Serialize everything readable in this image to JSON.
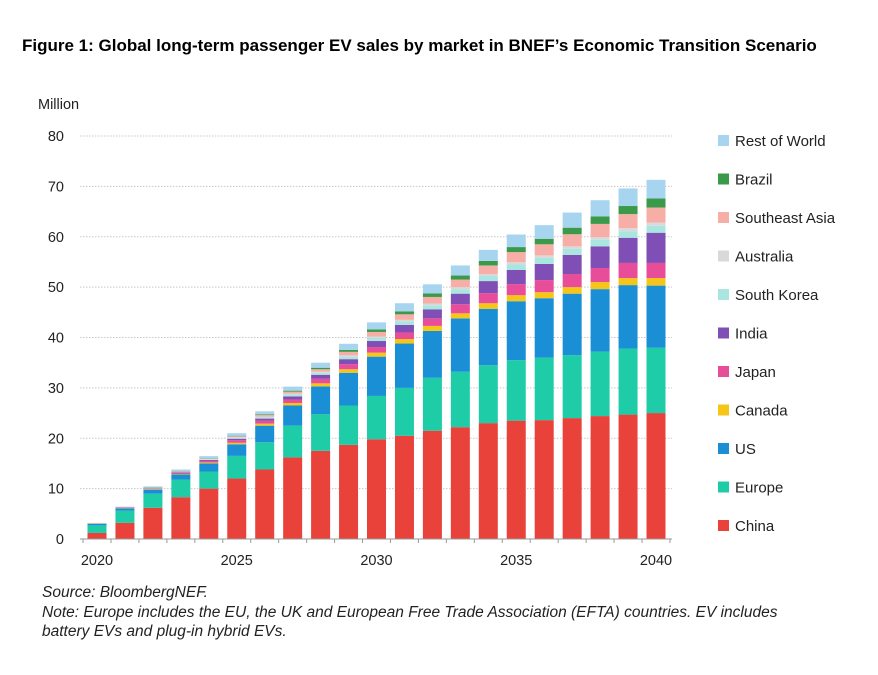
{
  "chart_data": {
    "type": "bar",
    "stacked": true,
    "title": "Figure 1: Global long-term passenger EV sales by market in BNEF’s Economic Transition Scenario",
    "ylabel": "Million",
    "xlabel": "",
    "ylim": [
      0,
      80
    ],
    "yticks": [
      0,
      10,
      20,
      30,
      40,
      50,
      60,
      70,
      80
    ],
    "xtick_labels": [
      "2020",
      "2025",
      "2030",
      "2035",
      "2040"
    ],
    "grid": true,
    "legend_position": "right",
    "categories": [
      "2020",
      "2021",
      "2022",
      "2023",
      "2024",
      "2025",
      "2026",
      "2027",
      "2028",
      "2029",
      "2030",
      "2031",
      "2032",
      "2033",
      "2034",
      "2035",
      "2036",
      "2037",
      "2038",
      "2039",
      "2040"
    ],
    "series": [
      {
        "name": "China",
        "color": "#e8423a",
        "values": [
          1.2,
          3.2,
          6.2,
          8.3,
          10,
          12,
          13.8,
          16.2,
          17.5,
          18.7,
          19.8,
          20.5,
          21.5,
          22.2,
          23,
          23.5,
          23.6,
          24,
          24.4,
          24.7,
          25
        ]
      },
      {
        "name": "Europe",
        "color": "#1fcca8",
        "values": [
          1.5,
          2.4,
          2.8,
          3.5,
          3.4,
          4.5,
          5.4,
          6.3,
          7.3,
          7.8,
          8.6,
          9.5,
          10.5,
          11,
          11.5,
          12,
          12.4,
          12.5,
          12.8,
          13.1,
          13
        ]
      },
      {
        "name": "US",
        "color": "#1a8fd6",
        "values": [
          0.3,
          0.5,
          0.8,
          1,
          1.6,
          2.3,
          3.3,
          4,
          5.5,
          6.5,
          7.8,
          8.8,
          9.3,
          10.6,
          11.2,
          11.7,
          11.8,
          12.2,
          12.4,
          12.6,
          12.3
        ]
      },
      {
        "name": "Canada",
        "color": "#f5c518",
        "values": [
          0.05,
          0.05,
          0.1,
          0.1,
          0.2,
          0.3,
          0.4,
          0.5,
          0.6,
          0.7,
          0.8,
          0.9,
          1,
          1,
          1.1,
          1.2,
          1.2,
          1.3,
          1.4,
          1.4,
          1.5
        ]
      },
      {
        "name": "Japan",
        "color": "#e84d9a",
        "values": [
          0.05,
          0.1,
          0.1,
          0.2,
          0.3,
          0.5,
          0.6,
          0.7,
          0.9,
          1,
          1.1,
          1.3,
          1.5,
          1.8,
          2,
          2.2,
          2.4,
          2.6,
          2.8,
          3,
          3
        ]
      },
      {
        "name": "India",
        "color": "#7f4fb5",
        "values": [
          0,
          0,
          0.05,
          0.1,
          0.2,
          0.3,
          0.4,
          0.6,
          0.8,
          1,
          1.2,
          1.5,
          1.8,
          2.1,
          2.4,
          2.8,
          3.2,
          3.8,
          4.3,
          5,
          6
        ]
      },
      {
        "name": "South Korea",
        "color": "#a8e6df",
        "values": [
          0.05,
          0.05,
          0.1,
          0.1,
          0.15,
          0.2,
          0.3,
          0.4,
          0.4,
          0.5,
          0.6,
          0.7,
          0.8,
          0.9,
          1,
          1.1,
          1.2,
          1.2,
          1.3,
          1.3,
          1.4
        ]
      },
      {
        "name": "Australia",
        "color": "#d9d9d9",
        "values": [
          0,
          0,
          0.02,
          0.05,
          0.05,
          0.1,
          0.1,
          0.15,
          0.2,
          0.25,
          0.3,
          0.3,
          0.35,
          0.4,
          0.4,
          0.45,
          0.5,
          0.5,
          0.55,
          0.6,
          0.6
        ]
      },
      {
        "name": "Southeast Asia",
        "color": "#f7aea6",
        "values": [
          0,
          0.02,
          0.05,
          0.1,
          0.1,
          0.2,
          0.3,
          0.4,
          0.5,
          0.7,
          0.9,
          1.1,
          1.3,
          1.5,
          1.7,
          2,
          2.2,
          2.4,
          2.6,
          2.8,
          3
        ]
      },
      {
        "name": "Brazil",
        "color": "#3a9a4a",
        "values": [
          0,
          0,
          0.02,
          0.05,
          0.05,
          0.1,
          0.15,
          0.2,
          0.3,
          0.4,
          0.5,
          0.6,
          0.7,
          0.8,
          0.9,
          1,
          1.1,
          1.3,
          1.5,
          1.6,
          1.8
        ]
      },
      {
        "name": "Rest of World",
        "color": "#a7d4ef",
        "values": [
          0.05,
          0.1,
          0.2,
          0.3,
          0.4,
          0.5,
          0.6,
          0.8,
          1,
          1.2,
          1.4,
          1.6,
          1.8,
          2,
          2.2,
          2.5,
          2.7,
          3,
          3.2,
          3.5,
          3.7
        ]
      }
    ]
  },
  "notes": {
    "source": "Source: BloombergNEF.",
    "note": "Note: Europe includes the EU, the UK and European Free Trade Association (EFTA) countries. EV includes battery EVs and plug-in hybrid EVs."
  }
}
